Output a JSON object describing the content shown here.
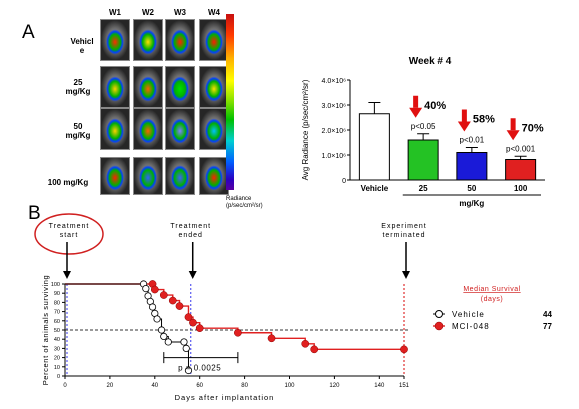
{
  "panel_a": {
    "letter": "A",
    "weeks": [
      "W1",
      "W2",
      "W3",
      "W4"
    ],
    "rows": [
      {
        "label_line1": "Vehicl",
        "label_line2": "e"
      },
      {
        "label_line1": "25",
        "label_line2": "mg/Kg"
      },
      {
        "label_line1": "50",
        "label_line2": "mg/Kg"
      },
      {
        "label_line1": "100 mg/Kg",
        "label_line2": ""
      }
    ],
    "scale_title": "Radiance",
    "scale_units": "(p/sec/cm²/sr)"
  },
  "panel_b": {
    "letter": "B"
  },
  "colors": {
    "treated": "#e02020",
    "vehicle": "#ffffff",
    "blue_bar": "#1a1ad8",
    "arrow": "#e01010",
    "dash_blue": "#5a5af0",
    "dash_red": "#e03030"
  },
  "chart_data": [
    {
      "type": "bar",
      "title": "Week # 4",
      "ylabel": "Avg Radiance (p/sec/cm²/sr)",
      "xlabel": "mg/Kg",
      "ylim": [
        0,
        4000000
      ],
      "ytick_labels": [
        "0",
        "1.0×10⁶",
        "2.0×10⁶",
        "3.0×10⁶",
        "4.0×10⁶"
      ],
      "categories": [
        "Vehicle",
        "25",
        "50",
        "100"
      ],
      "values": [
        2650000,
        1600000,
        1100000,
        820000
      ],
      "errors": [
        450000,
        250000,
        200000,
        130000
      ],
      "bar_colors": [
        "#ffffff",
        "#24c224",
        "#1a1ad8",
        "#e02020"
      ],
      "annotations": [
        {
          "category": "25",
          "percent": "40%",
          "p": "p<0.05"
        },
        {
          "category": "50",
          "percent": "58%",
          "p": "p<0.01"
        },
        {
          "category": "100",
          "percent": "70%",
          "p": "p<0.001"
        }
      ]
    },
    {
      "type": "line",
      "ylabel": "Percent of animals surviving",
      "xlabel": "Days after implantation",
      "xlim": [
        0,
        151
      ],
      "ylim": [
        0,
        100
      ],
      "xticks": [
        "0",
        "20",
        "40",
        "60",
        "80",
        "100",
        "120",
        "140",
        "151"
      ],
      "yticks": [
        "0",
        "10",
        "20",
        "30",
        "40",
        "50",
        "60",
        "70",
        "80",
        "90",
        "100"
      ],
      "series": [
        {
          "name": "Vehicle",
          "median": "44",
          "points": [
            [
              0,
              100
            ],
            [
              35,
              100
            ],
            [
              36,
              95
            ],
            [
              37,
              87
            ],
            [
              38,
              81
            ],
            [
              39,
              75
            ],
            [
              40,
              68
            ],
            [
              41,
              62
            ],
            [
              43,
              50
            ],
            [
              44,
              43
            ],
            [
              46,
              37
            ],
            [
              53,
              37
            ],
            [
              54,
              30
            ],
            [
              55,
              6
            ]
          ]
        },
        {
          "name": "MCI-048",
          "median": "77",
          "points": [
            [
              0,
              100
            ],
            [
              39,
              100
            ],
            [
              40,
              94
            ],
            [
              44,
              88
            ],
            [
              48,
              82
            ],
            [
              51,
              76
            ],
            [
              55,
              64
            ],
            [
              57,
              58
            ],
            [
              60,
              52
            ],
            [
              77,
              47
            ],
            [
              92,
              41
            ],
            [
              107,
              35
            ],
            [
              111,
              29
            ],
            [
              151,
              29
            ]
          ]
        }
      ],
      "dashed_h": 50,
      "events": [
        {
          "day": 0,
          "label1": "Treatment",
          "label2": "start"
        },
        {
          "day": 56,
          "label1": "Treatment",
          "label2": "ended"
        },
        {
          "day": 151,
          "label1": "Experiment",
          "label2": "terminated"
        }
      ],
      "p_value": "p = 0.0025",
      "legend_title1": "Median Survival",
      "legend_title2": "(days)"
    }
  ]
}
